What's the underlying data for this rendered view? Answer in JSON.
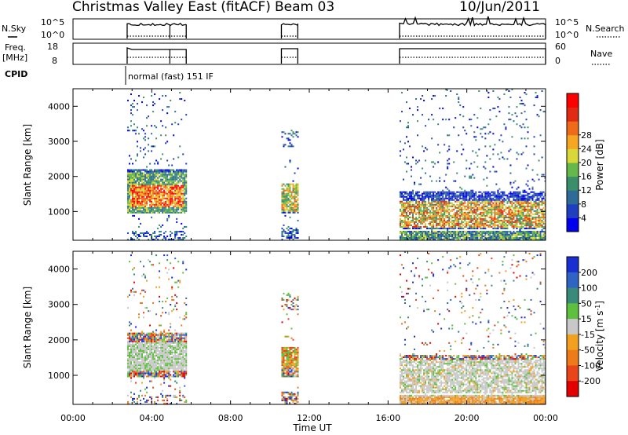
{
  "header": {
    "title": "Christmas Valley East (fitACF)",
    "beam": "Beam 03",
    "date": "10/Jun/2011"
  },
  "top_panels": {
    "nsky_label": "N.Sky",
    "nsky_ticks": [
      "10^5",
      "10^0"
    ],
    "nsearch_label": "N.Search",
    "nsearch_ticks": [
      "10^5",
      "10^0"
    ],
    "freq_label": "Freq.",
    "freq_unit": "[MHz]",
    "freq_ticks": [
      "18",
      "8"
    ],
    "nave_label": "Nave",
    "nave_ticks": [
      "60",
      "0"
    ],
    "cpid_label": "CPID",
    "cpid_text": "normal (fast) 151 IF"
  },
  "chart_data": [
    {
      "type": "heatmap",
      "name": "power",
      "ylabel": "Slant Range [km]",
      "yticks": [
        "1000",
        "2000",
        "3000",
        "4000"
      ],
      "ylim": [
        180,
        4500
      ],
      "xlim": [
        "00:00",
        "24:00"
      ],
      "colorbar": {
        "label": "Power [dB]",
        "ticks": [
          "4",
          "8",
          "12",
          "16",
          "20",
          "24",
          "28"
        ],
        "colors": [
          "#0000ee",
          "#1f3fbf",
          "#2e6b96",
          "#3a8f6a",
          "#66b84a",
          "#d8d83a",
          "#f5a623",
          "#ef6b1a",
          "#e02a14",
          "#ff0000"
        ]
      },
      "blocks": [
        {
          "start": "02:45",
          "end": "05:45",
          "range": [
            180,
            4400
          ]
        },
        {
          "start": "10:35",
          "end": "11:25",
          "range": [
            180,
            3300
          ]
        },
        {
          "start": "16:35",
          "end": "24:00",
          "range": [
            180,
            4500
          ]
        }
      ]
    },
    {
      "type": "heatmap",
      "name": "velocity",
      "ylabel": "Slant Range [km]",
      "yticks": [
        "1000",
        "2000",
        "3000",
        "4000"
      ],
      "ylim": [
        180,
        4500
      ],
      "xlim": [
        "00:00",
        "24:00"
      ],
      "xticks": [
        "00:00",
        "04:00",
        "08:00",
        "12:00",
        "16:00",
        "20:00",
        "00:00"
      ],
      "xlabel": "Time UT",
      "colorbar": {
        "label": "Velocity [m s^-1]",
        "ticks": [
          "200",
          "100",
          "50",
          "15",
          "-15",
          "-50",
          "-100",
          "-200"
        ],
        "colors": [
          "#1a2fd0",
          "#2f63c4",
          "#3a8a7a",
          "#5fbf3f",
          "#c8c8c8",
          "#f2a020",
          "#ef7a1a",
          "#e9451a",
          "#e30000"
        ]
      }
    }
  ]
}
